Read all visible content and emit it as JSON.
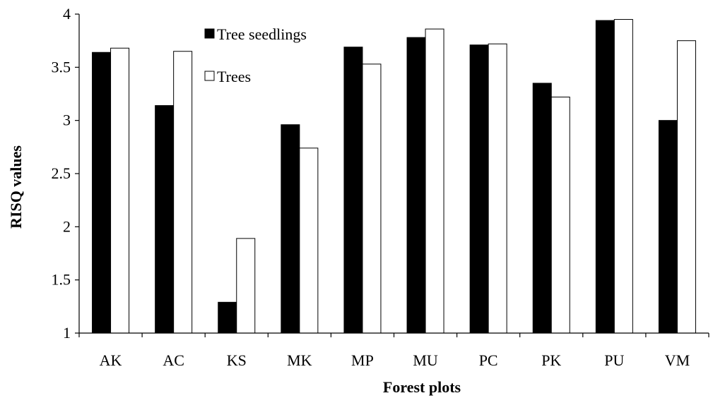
{
  "chart_data": {
    "type": "bar",
    "title": "",
    "xlabel": "Forest plots",
    "ylabel": "RISQ values",
    "categories": [
      "AK",
      "AC",
      "KS",
      "MK",
      "MP",
      "MU",
      "PC",
      "PK",
      "PU",
      "VM"
    ],
    "series": [
      {
        "name": "Tree seedlings",
        "color": "#000000",
        "values": [
          3.64,
          3.14,
          1.29,
          2.96,
          3.69,
          3.78,
          3.71,
          3.35,
          3.94,
          3.0
        ]
      },
      {
        "name": "Trees",
        "color": "#ffffff",
        "values": [
          3.68,
          3.65,
          1.89,
          2.74,
          3.53,
          3.86,
          3.72,
          3.22,
          3.95,
          3.75
        ]
      }
    ],
    "ylim": [
      1,
      4
    ],
    "yticks": [
      "1",
      "1.5",
      "2",
      "2.5",
      "3",
      "3.5",
      "4"
    ],
    "grid": false,
    "legend_position": "top-left"
  }
}
